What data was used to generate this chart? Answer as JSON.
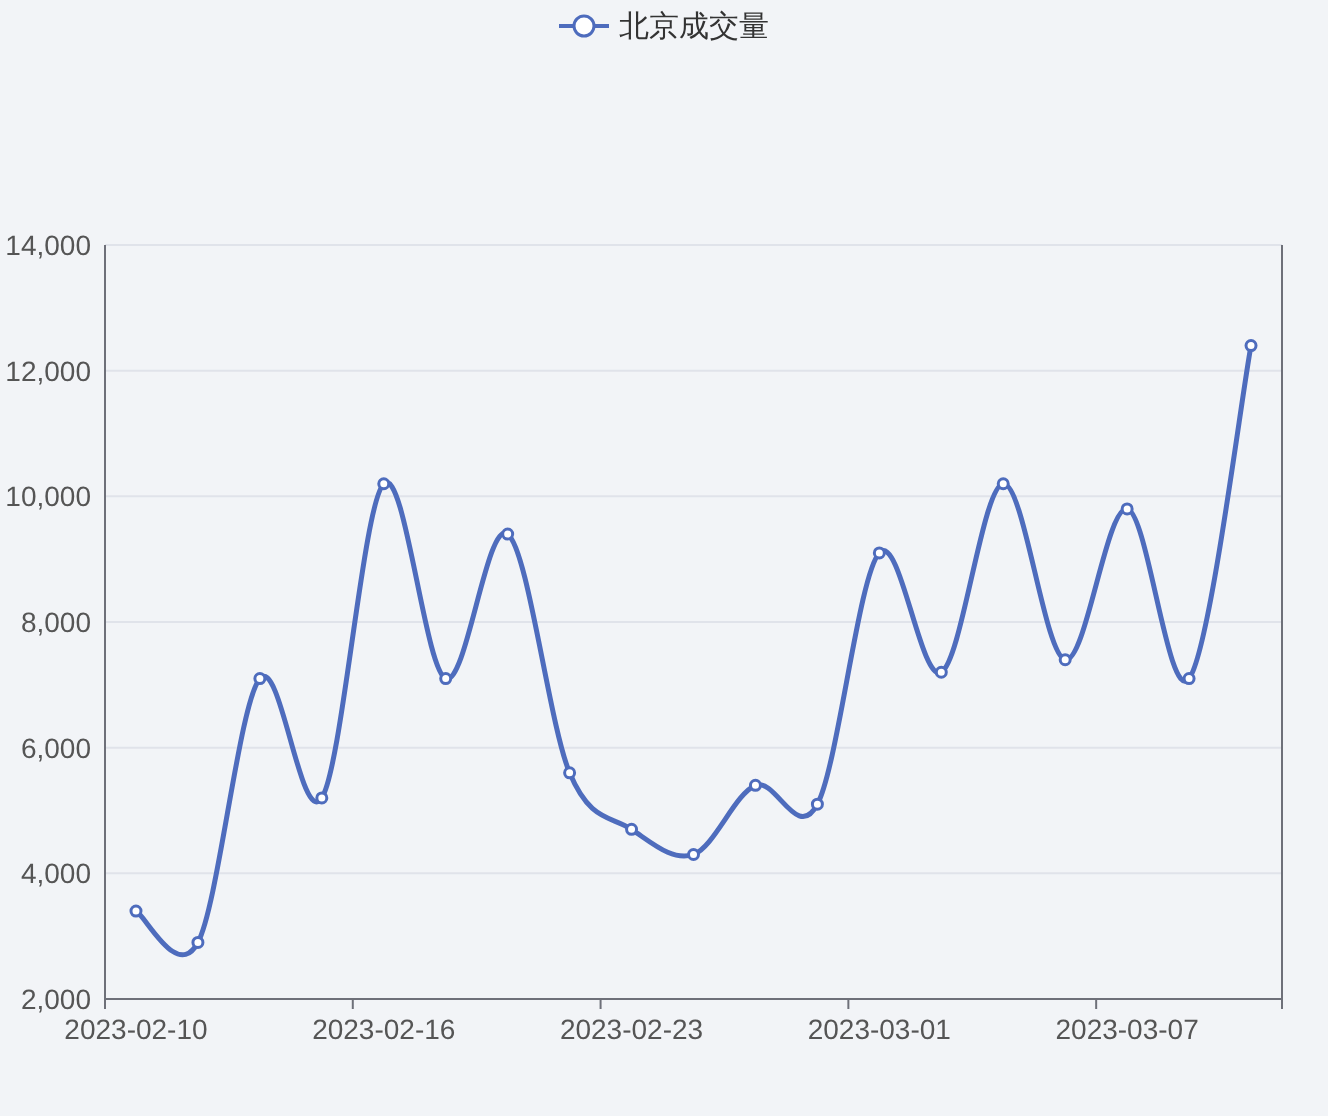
{
  "chart_data": {
    "type": "line",
    "categories": [
      "2023-02-10",
      null,
      null,
      null,
      "2023-02-16",
      null,
      null,
      null,
      "2023-02-23",
      null,
      null,
      null,
      "2023-03-01",
      null,
      null,
      null,
      "2023-03-07",
      null,
      null
    ],
    "series": [
      {
        "name": "北京成交量",
        "color": "#4e6cbd",
        "values": [
          3400,
          2900,
          7100,
          5200,
          10200,
          7100,
          9400,
          5600,
          4700,
          4300,
          5400,
          5100,
          9100,
          7200,
          10200,
          7400,
          9800,
          7100,
          12400
        ]
      }
    ],
    "ylim": [
      2000,
      14000
    ],
    "yticks": [
      {
        "value": 2000,
        "label": "2,000"
      },
      {
        "value": 4000,
        "label": "4,000"
      },
      {
        "value": 6000,
        "label": "6,000"
      },
      {
        "value": 8000,
        "label": "8,000"
      },
      {
        "value": 10000,
        "label": "10,000"
      },
      {
        "value": 12000,
        "label": "12,000"
      },
      {
        "value": 14000,
        "label": "14,000"
      }
    ],
    "grid": "y",
    "legend": "top",
    "marker": "circle",
    "line_style": "solid"
  }
}
